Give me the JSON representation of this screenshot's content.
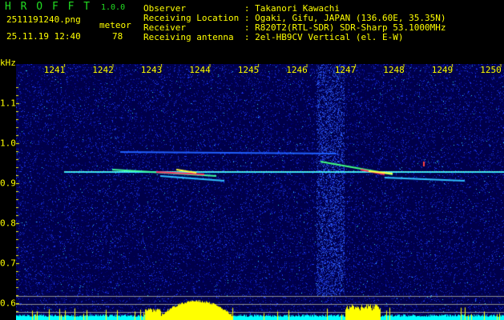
{
  "header": {
    "app_name": "H R O F F T",
    "version": "1.0.0",
    "filename": "2511191240.png",
    "datetime": "25.11.19 12:40",
    "meteor_label": "meteor",
    "meteor_count": "78"
  },
  "info": [
    {
      "label": "Observer           ",
      "value": ": Takanori Kawachi"
    },
    {
      "label": "Receiving Location ",
      "value": ": Ogaki, Gifu, JAPAN (136.60E, 35.35N)"
    },
    {
      "label": "Receiver           ",
      "value": ": R820T2(RTL-SDR) SDR-Sharp 53.1000MHz"
    },
    {
      "label": "Receiving antenna  ",
      "value": ": 2el-HB9CV Vertical (el. E-W)"
    }
  ],
  "axis": {
    "y_unit": "kHz",
    "x_ticks": [
      "1241",
      "1242",
      "1243",
      "1244",
      "1245",
      "1246",
      "1247",
      "1248",
      "1249",
      "1250"
    ],
    "y_ticks": [
      "1.1",
      "1.0",
      "0.9",
      "0.8",
      "0.7",
      "0.6"
    ]
  },
  "colors": {
    "text": "#ffff00",
    "logo": "#22dd22",
    "waterfall_bg": "#000060",
    "signal": "#00ffff",
    "histogram": "#ffff00"
  }
}
